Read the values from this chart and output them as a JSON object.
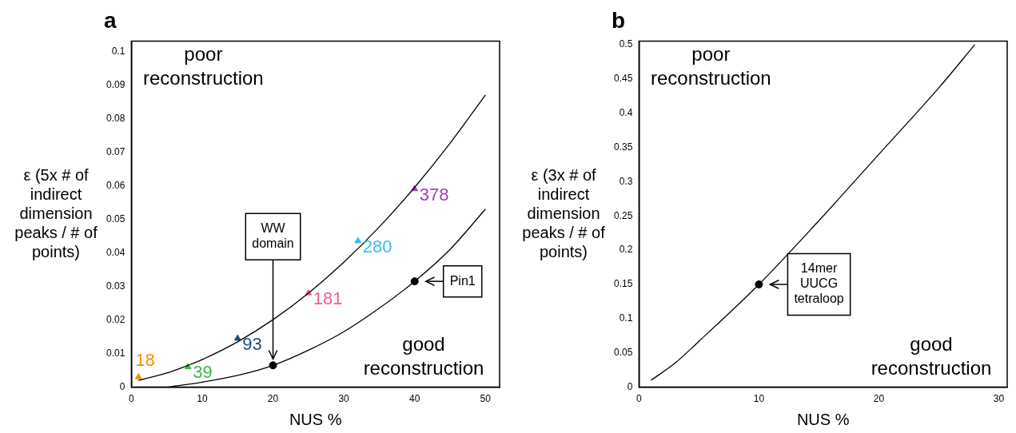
{
  "chart_data": [
    {
      "type": "line",
      "title": "a",
      "xlabel": "NUS %",
      "ylabel": "ε (5x # of indirect dimension peaks / # of points)",
      "xlim": [
        0,
        52
      ],
      "xticks": [
        0,
        10,
        20,
        30,
        40,
        50
      ],
      "ylim": [
        0,
        0.103
      ],
      "yticks": [
        0,
        0.01,
        0.02,
        0.03,
        0.04,
        0.05,
        0.06,
        0.07,
        0.08,
        0.09,
        0.1
      ],
      "grid": false,
      "legend": false,
      "series": [
        {
          "type": "line",
          "color": "#000000",
          "marker": "none",
          "x": [
            1,
            5,
            8,
            10,
            15,
            20,
            25,
            30,
            35,
            40,
            45,
            50
          ],
          "values": [
            0.002,
            0.0042,
            0.0065,
            0.0082,
            0.0135,
            0.0201,
            0.028,
            0.0372,
            0.0477,
            0.0595,
            0.0726,
            0.087
          ]
        },
        {
          "type": "line",
          "color": "#000000",
          "marker": "none",
          "x": [
            5,
            10,
            15,
            20,
            25,
            30,
            35,
            40,
            45,
            50
          ],
          "values": [
            0,
            0.0015,
            0.0035,
            0.0065,
            0.011,
            0.0165,
            0.0235,
            0.0315,
            0.041,
            0.053
          ]
        },
        {
          "type": "scatter",
          "color": "#000000",
          "marker": "circle",
          "x": [
            20,
            40
          ],
          "values": [
            0.0065,
            0.0315
          ]
        },
        {
          "type": "scatter",
          "name": "18",
          "color": "#f29000",
          "marker": "triangle",
          "x": [
            1
          ],
          "values": [
            0.003
          ]
        },
        {
          "type": "scatter",
          "name": "39",
          "color": "#3cb84a",
          "marker": "triangle",
          "x": [
            8
          ],
          "values": [
            0.006
          ]
        },
        {
          "type": "scatter",
          "name": "93",
          "color": "#1f4a80",
          "marker": "triangle",
          "x": [
            15
          ],
          "values": [
            0.0145
          ]
        },
        {
          "type": "scatter",
          "name": "181",
          "color": "#f0608a",
          "marker": "triangle",
          "x": [
            25
          ],
          "values": [
            0.028
          ]
        },
        {
          "type": "scatter",
          "name": "280",
          "color": "#40b8f0",
          "marker": "triangle",
          "x": [
            32
          ],
          "values": [
            0.0435
          ]
        },
        {
          "type": "scatter",
          "name": "378",
          "color": "#a040c0",
          "marker": "triangle",
          "x": [
            40
          ],
          "values": [
            0.059
          ]
        }
      ],
      "annotations": [
        "poor reconstruction",
        "good reconstruction",
        {
          "text": "WW domain",
          "x": 20,
          "y": 0.0065
        },
        {
          "text": "Pin1",
          "x": 40,
          "y": 0.0315
        }
      ]
    },
    {
      "type": "line",
      "title": "b",
      "xlabel": "NUS %",
      "ylabel": "ε (3x # of indirect dimension peaks / # of points)",
      "xlim": [
        0,
        30.7
      ],
      "xticks": [
        0,
        10,
        20,
        30
      ],
      "ylim": [
        0,
        0.505
      ],
      "yticks": [
        0,
        0.05,
        0.1,
        0.15,
        0.2,
        0.25,
        0.3,
        0.35,
        0.4,
        0.45,
        0.5
      ],
      "grid": false,
      "legend": false,
      "series": [
        {
          "type": "line",
          "color": "#000000",
          "marker": "none",
          "x": [
            1,
            3,
            5,
            10,
            15,
            20,
            25,
            28
          ],
          "values": [
            0.01,
            0.035,
            0.067,
            0.15,
            0.243,
            0.34,
            0.437,
            0.5
          ]
        },
        {
          "type": "scatter",
          "color": "#000000",
          "marker": "circle",
          "x": [
            10
          ],
          "values": [
            0.15
          ]
        }
      ],
      "annotations": [
        "poor reconstruction",
        "good reconstruction",
        {
          "text": "14mer UUCG tetraloop",
          "x": 10,
          "y": 0.15
        }
      ]
    }
  ]
}
